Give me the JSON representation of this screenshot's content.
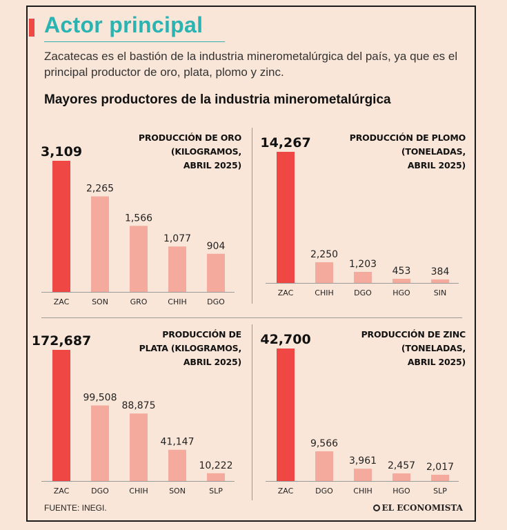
{
  "header": {
    "title": "Actor principal",
    "subtitle": "Zacatecas es el bastión de la industria minerometalúrgica del país, ya que es el principal productor de oro, plata, plomo y zinc.",
    "section_title": "Mayores productores de la industria minerometalúrgica"
  },
  "footer": {
    "source": "FUENTE: INEGI.",
    "logo": "EL ECONOMISTA"
  },
  "colors": {
    "lead_bar": "#ef4744",
    "other_bar": "#f5aa9e",
    "accent": "#2ab3b1"
  },
  "chart_data": [
    {
      "type": "bar",
      "title_lines": [
        "PRODUCCIÓN DE ORO",
        "(KILOGRAMOS,",
        "ABRIL 2025)"
      ],
      "categories": [
        "ZAC",
        "SON",
        "GRO",
        "CHIH",
        "DGO"
      ],
      "values": [
        3109,
        2265,
        1566,
        1077,
        904
      ],
      "labels": [
        "3,109",
        "2,265",
        "1,566",
        "1,077",
        "904"
      ]
    },
    {
      "type": "bar",
      "title_lines": [
        "PRODUCCIÓN DE PLOMO",
        "(TONELADAS,",
        "ABRIL 2025)"
      ],
      "categories": [
        "ZAC",
        "CHIH",
        "DGO",
        "HGO",
        "SIN"
      ],
      "values": [
        14267,
        2250,
        1203,
        453,
        384
      ],
      "labels": [
        "14,267",
        "2,250",
        "1,203",
        "453",
        "384"
      ]
    },
    {
      "type": "bar",
      "title_lines": [
        "PRODUCCIÓN DE",
        "PLATA (KILOGRAMOS,",
        "ABRIL 2025)"
      ],
      "categories": [
        "ZAC",
        "DGO",
        "CHIH",
        "SON",
        "SLP"
      ],
      "values": [
        172687,
        99508,
        88875,
        41147,
        10222
      ],
      "labels": [
        "172,687",
        "99,508",
        "88,875",
        "41,147",
        "10,222"
      ]
    },
    {
      "type": "bar",
      "title_lines": [
        "PRODUCCIÓN DE ZINC",
        "(TONELADAS,",
        "ABRIL 2025)"
      ],
      "categories": [
        "ZAC",
        "DGO",
        "CHIH",
        "HGO",
        "SLP"
      ],
      "values": [
        42700,
        9566,
        3961,
        2457,
        2017
      ],
      "labels": [
        "42,700",
        "9,566",
        "3,961",
        "2,457",
        "2,017"
      ]
    }
  ]
}
